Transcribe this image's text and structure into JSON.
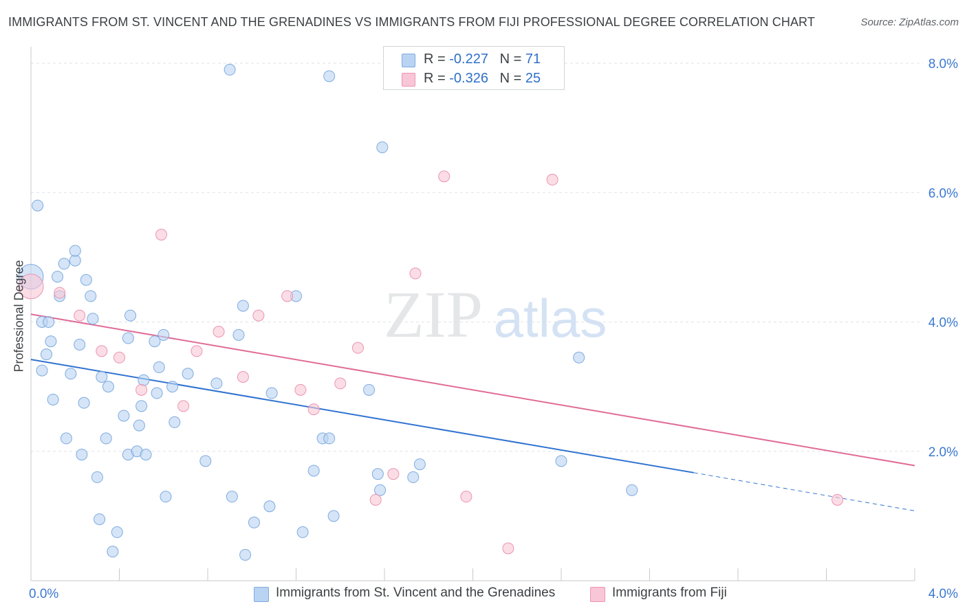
{
  "title": "IMMIGRANTS FROM ST. VINCENT AND THE GRENADINES VS IMMIGRANTS FROM FIJI PROFESSIONAL DEGREE CORRELATION CHART",
  "source": "Source: ZipAtlas.com",
  "watermark": {
    "zip": "ZIP",
    "atlas": "atlas"
  },
  "colors": {
    "blue_fill": "#b9d3f2",
    "blue_stroke": "#7eaae0",
    "blue_line": "#2f72d0",
    "pink_fill": "#f8c6d6",
    "pink_stroke": "#ec93b2",
    "pink_line": "#e06b96",
    "axis_label": "#3b78d0",
    "grid": "#dfe2e6"
  },
  "legend": {
    "rows": [
      {
        "r_label": "R =",
        "r_value": "-0.227",
        "n_label": "N =",
        "n_value": "71"
      },
      {
        "r_label": "R =",
        "r_value": "-0.326",
        "n_label": "N =",
        "n_value": "25"
      }
    ]
  },
  "bottom_legend": {
    "blue": "Immigrants from St. Vincent and the Grenadines",
    "pink": "Immigrants from Fiji"
  },
  "chart_data": {
    "type": "scatter",
    "ylabel": "Professional Degree",
    "xlabel": "",
    "xlim": [
      0,
      4.0
    ],
    "ylim": [
      0,
      8.0
    ],
    "x_tick_labels": [
      {
        "value": 0,
        "label": "0.0%"
      },
      {
        "value": 4.0,
        "label": "4.0%"
      }
    ],
    "y_tick_labels": [
      {
        "value": 2.0,
        "label": "2.0%"
      },
      {
        "value": 4.0,
        "label": "4.0%"
      },
      {
        "value": 6.0,
        "label": "6.0%"
      },
      {
        "value": 8.0,
        "label": "8.0%"
      }
    ],
    "grid": true,
    "legend_position": "top-center",
    "series": [
      {
        "name": "Immigrants from St. Vincent and the Grenadines",
        "color": "blue",
        "points": [
          [
            0.0,
            4.7
          ],
          [
            0.03,
            5.8
          ],
          [
            0.05,
            4.0
          ],
          [
            0.05,
            3.25
          ],
          [
            0.07,
            3.5
          ],
          [
            0.08,
            4.0
          ],
          [
            0.09,
            3.7
          ],
          [
            0.1,
            2.8
          ],
          [
            0.12,
            4.7
          ],
          [
            0.13,
            4.4
          ],
          [
            0.15,
            4.9
          ],
          [
            0.16,
            2.2
          ],
          [
            0.18,
            3.2
          ],
          [
            0.2,
            4.95
          ],
          [
            0.2,
            5.1
          ],
          [
            0.22,
            3.65
          ],
          [
            0.23,
            1.95
          ],
          [
            0.24,
            2.75
          ],
          [
            0.25,
            4.65
          ],
          [
            0.27,
            4.4
          ],
          [
            0.28,
            4.05
          ],
          [
            0.3,
            1.6
          ],
          [
            0.31,
            0.95
          ],
          [
            0.32,
            3.15
          ],
          [
            0.34,
            2.2
          ],
          [
            0.35,
            3.0
          ],
          [
            0.37,
            0.45
          ],
          [
            0.39,
            0.75
          ],
          [
            0.42,
            2.55
          ],
          [
            0.44,
            1.95
          ],
          [
            0.44,
            3.75
          ],
          [
            0.45,
            4.1
          ],
          [
            0.48,
            2.0
          ],
          [
            0.49,
            2.4
          ],
          [
            0.5,
            2.7
          ],
          [
            0.51,
            3.1
          ],
          [
            0.52,
            1.95
          ],
          [
            0.56,
            3.7
          ],
          [
            0.57,
            2.9
          ],
          [
            0.58,
            3.3
          ],
          [
            0.6,
            3.8
          ],
          [
            0.61,
            1.3
          ],
          [
            0.64,
            3.0
          ],
          [
            0.65,
            2.45
          ],
          [
            0.71,
            3.2
          ],
          [
            0.79,
            1.85
          ],
          [
            0.84,
            3.05
          ],
          [
            0.9,
            7.9
          ],
          [
            0.91,
            1.3
          ],
          [
            0.94,
            3.8
          ],
          [
            0.96,
            4.25
          ],
          [
            0.97,
            0.4
          ],
          [
            1.01,
            0.9
          ],
          [
            1.08,
            1.15
          ],
          [
            1.09,
            2.9
          ],
          [
            1.2,
            4.4
          ],
          [
            1.23,
            0.75
          ],
          [
            1.28,
            1.7
          ],
          [
            1.32,
            2.2
          ],
          [
            1.35,
            2.2
          ],
          [
            1.35,
            7.8
          ],
          [
            1.37,
            1.0
          ],
          [
            1.53,
            2.95
          ],
          [
            1.57,
            1.65
          ],
          [
            1.58,
            1.4
          ],
          [
            1.59,
            6.7
          ],
          [
            1.73,
            1.6
          ],
          [
            1.76,
            1.8
          ],
          [
            2.4,
            1.85
          ],
          [
            2.48,
            3.45
          ],
          [
            2.72,
            1.4
          ]
        ],
        "trend": {
          "x": [
            0.0,
            3.0
          ],
          "y": [
            3.42,
            1.67
          ],
          "dashed_extension": {
            "x": [
              3.0,
              4.0
            ],
            "y": [
              1.67,
              1.08
            ]
          }
        }
      },
      {
        "name": "Immigrants from Fiji",
        "color": "pink",
        "points": [
          [
            0.0,
            4.55
          ],
          [
            0.13,
            4.45
          ],
          [
            0.22,
            4.1
          ],
          [
            0.32,
            3.55
          ],
          [
            0.4,
            3.45
          ],
          [
            0.5,
            2.95
          ],
          [
            0.59,
            5.35
          ],
          [
            0.69,
            2.7
          ],
          [
            0.75,
            3.55
          ],
          [
            0.85,
            3.85
          ],
          [
            0.96,
            3.15
          ],
          [
            1.03,
            4.1
          ],
          [
            1.16,
            4.4
          ],
          [
            1.22,
            2.95
          ],
          [
            1.28,
            2.65
          ],
          [
            1.4,
            3.05
          ],
          [
            1.48,
            3.6
          ],
          [
            1.56,
            1.25
          ],
          [
            1.64,
            1.65
          ],
          [
            1.74,
            4.75
          ],
          [
            1.87,
            6.25
          ],
          [
            1.97,
            1.3
          ],
          [
            2.16,
            0.5
          ],
          [
            2.36,
            6.2
          ],
          [
            3.65,
            1.25
          ]
        ],
        "trend": {
          "x": [
            0.0,
            4.0
          ],
          "y": [
            4.12,
            1.78
          ]
        }
      }
    ]
  }
}
